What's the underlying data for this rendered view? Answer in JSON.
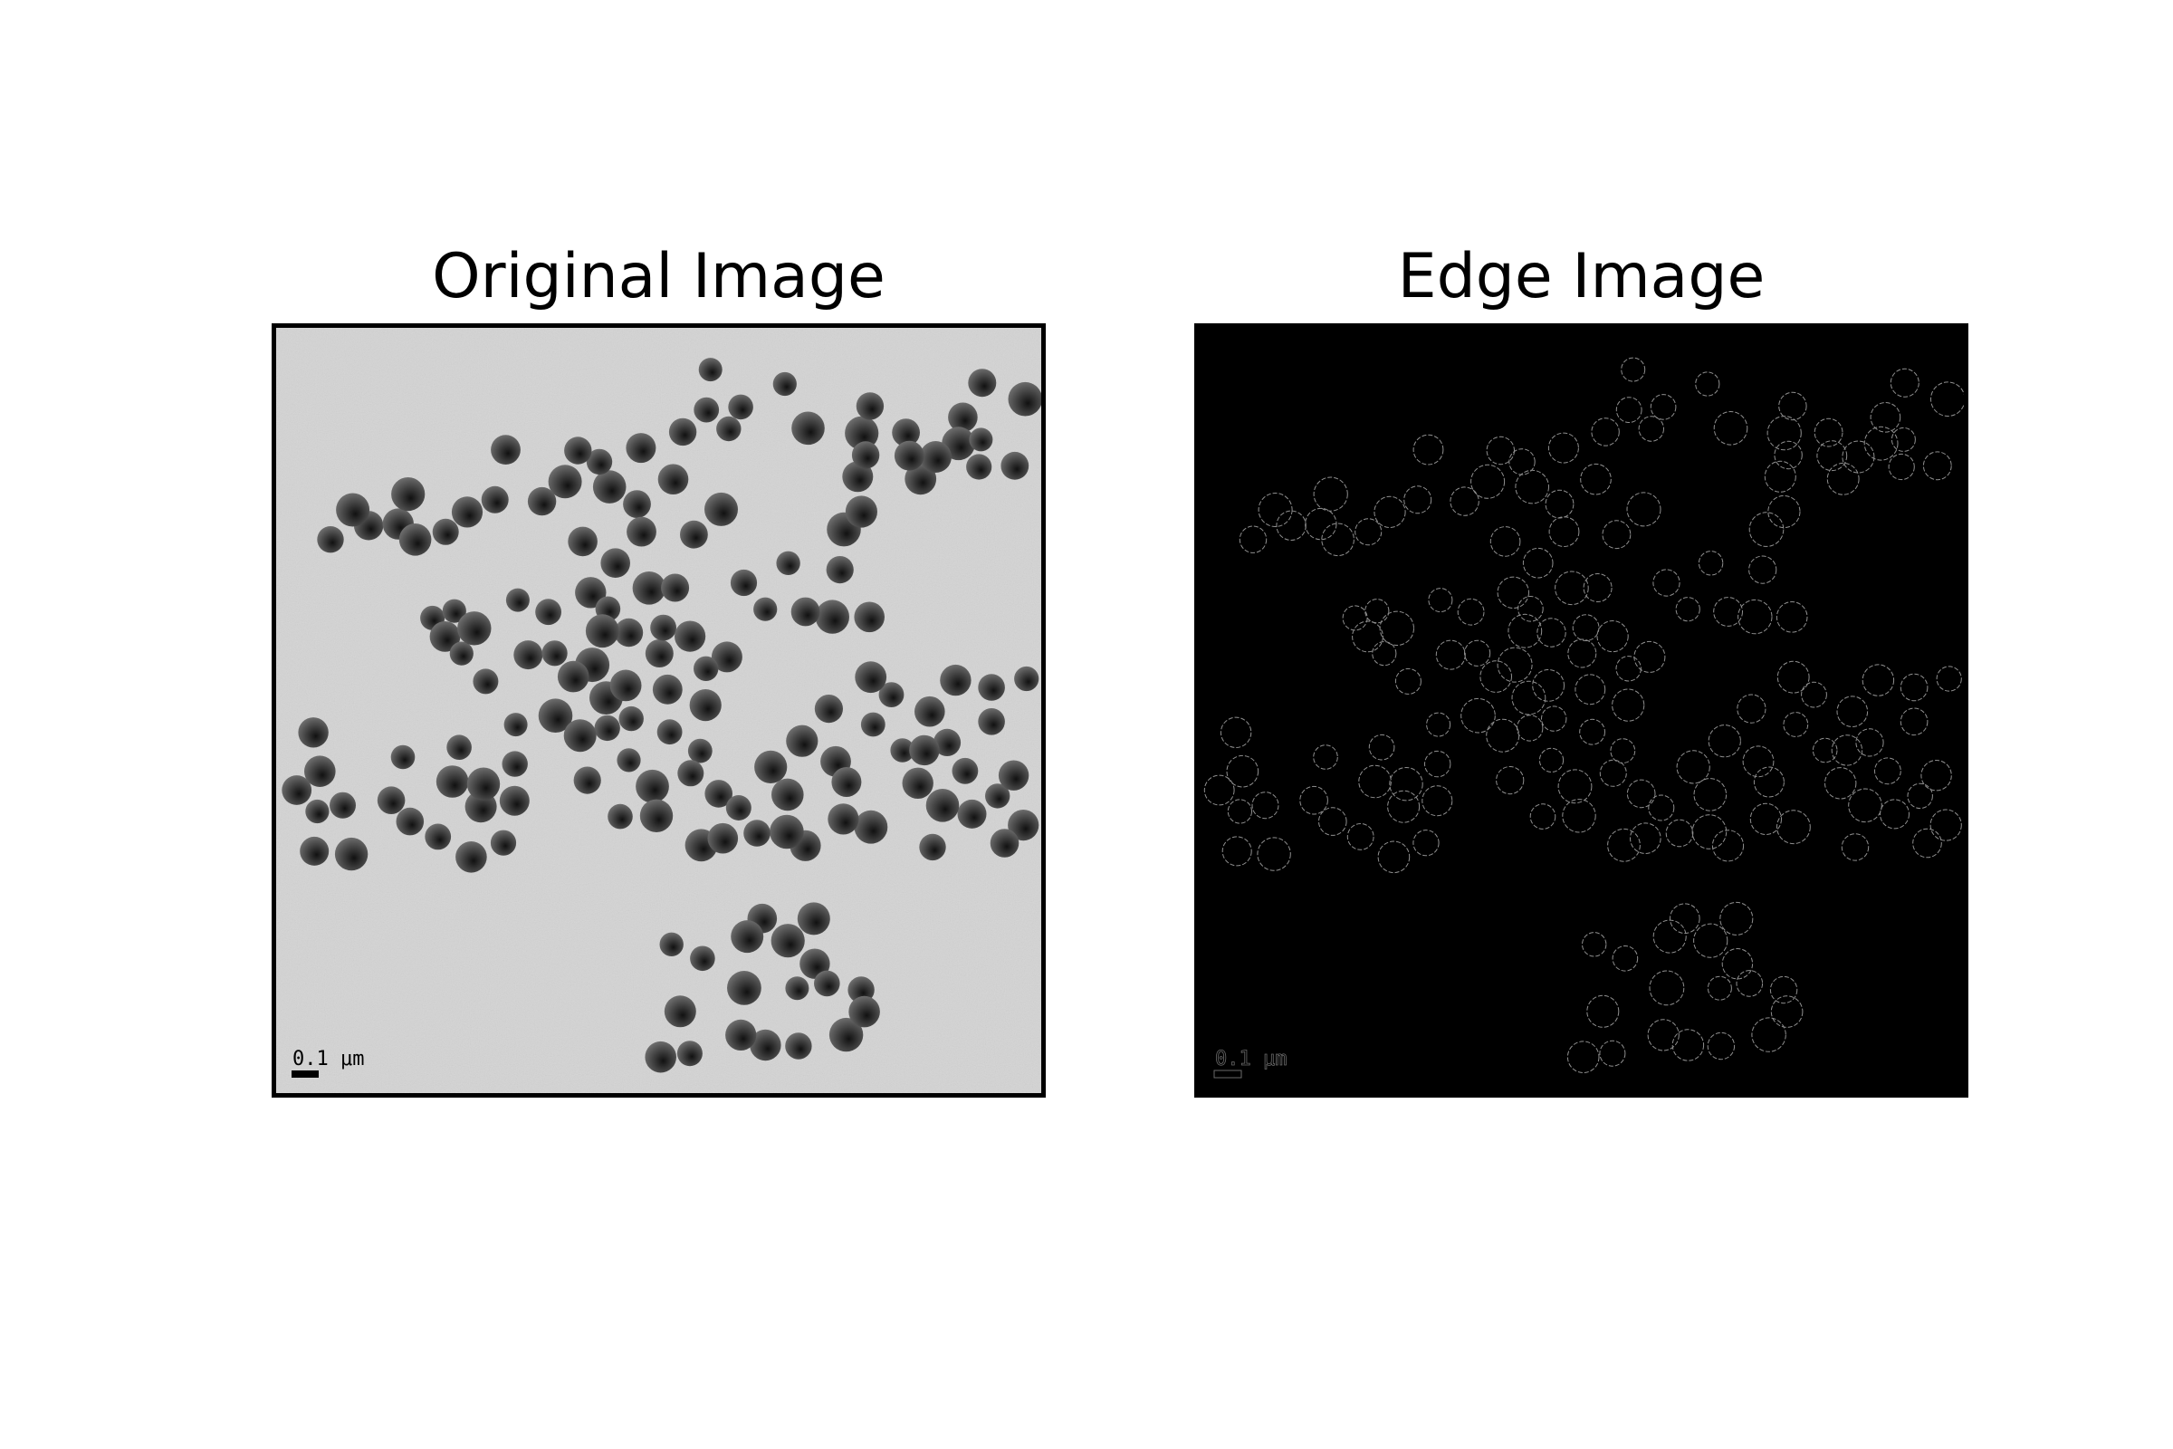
{
  "panels": {
    "left": {
      "title": "Original Image"
    },
    "right": {
      "title": "Edge Image"
    }
  },
  "scale_bar": {
    "label": "0.1 μm"
  },
  "colors": {
    "original_background": "#d4d4d4",
    "particle_edge": "#555555",
    "particle_core": "#141414",
    "edge_background": "#000000",
    "edge_line": "#8f8f8f"
  }
}
